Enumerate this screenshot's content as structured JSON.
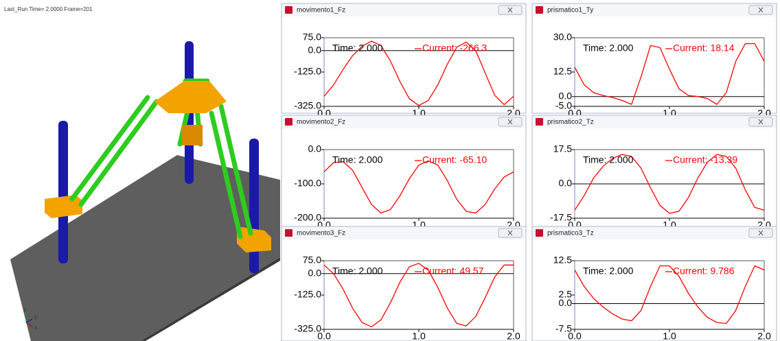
{
  "viewport": {
    "status": "Last_Run   Time= 2.0000  Frame=201",
    "triad": [
      "z",
      "y",
      "x"
    ]
  },
  "chart_data": [
    {
      "type": "line",
      "title": "movimento1_Fz",
      "annotations": {
        "time": "Time:  2.000",
        "current": "Current:  -266.3"
      },
      "xlim": [
        0,
        2
      ],
      "ylim": [
        -325,
        75
      ],
      "xticks": [
        {
          "value": 0,
          "label": "0.0"
        },
        {
          "value": 1,
          "label": "1.0"
        },
        {
          "value": 2,
          "label": "2.0"
        }
      ],
      "yticks": [
        {
          "value": 75,
          "label": "75.0"
        },
        {
          "value": 0,
          "label": "0.0"
        },
        {
          "value": -125,
          "label": "-125.0"
        },
        {
          "value": -325,
          "label": "-325.0"
        }
      ],
      "series": [
        {
          "color": "#ff0000",
          "x": [
            0,
            0.1,
            0.2,
            0.3,
            0.4,
            0.5,
            0.6,
            0.7,
            0.8,
            0.9,
            1.0,
            1.1,
            1.2,
            1.3,
            1.4,
            1.5,
            1.6,
            1.7,
            1.8,
            1.9,
            2.0
          ],
          "values": [
            -266,
            -200,
            -110,
            -30,
            25,
            55,
            30,
            -60,
            -180,
            -280,
            -320,
            -290,
            -200,
            -80,
            20,
            50,
            0,
            -130,
            -260,
            -315,
            -266
          ]
        }
      ]
    },
    {
      "type": "line",
      "title": "prismatico1_Ty",
      "annotations": {
        "time": "Time:  2.000",
        "current": "Current:  18.14"
      },
      "xlim": [
        0,
        2
      ],
      "ylim": [
        -5,
        30
      ],
      "xticks": [
        {
          "value": 0,
          "label": "0.0"
        },
        {
          "value": 1,
          "label": "1.0"
        },
        {
          "value": 2,
          "label": "2.0"
        }
      ],
      "yticks": [
        {
          "value": 30,
          "label": "30.0"
        },
        {
          "value": 12.5,
          "label": "12.5"
        },
        {
          "value": 0,
          "label": "0.0"
        },
        {
          "value": -5,
          "label": "-5.0"
        }
      ],
      "series": [
        {
          "color": "#ff0000",
          "x": [
            0,
            0.1,
            0.2,
            0.3,
            0.4,
            0.5,
            0.6,
            0.7,
            0.8,
            0.9,
            1.0,
            1.1,
            1.2,
            1.3,
            1.4,
            1.5,
            1.6,
            1.7,
            1.8,
            1.9,
            2.0
          ],
          "values": [
            15,
            6,
            2,
            0.5,
            -0.5,
            -2,
            -4,
            10,
            26,
            25,
            14,
            4,
            0.5,
            0,
            -1,
            -4,
            2,
            18,
            27,
            27,
            18
          ]
        }
      ]
    },
    {
      "type": "line",
      "title": "movimento2_Fz",
      "annotations": {
        "time": "Time:  2.000",
        "current": "Current:  -65.10"
      },
      "xlim": [
        0,
        2
      ],
      "ylim": [
        -200,
        0
      ],
      "xticks": [
        {
          "value": 0,
          "label": "0.0"
        },
        {
          "value": 1,
          "label": "1.0"
        },
        {
          "value": 2,
          "label": "2.0"
        }
      ],
      "yticks": [
        {
          "value": 0,
          "label": "0.0"
        },
        {
          "value": -100,
          "label": "-100.0"
        },
        {
          "value": -200,
          "label": "-200.0"
        }
      ],
      "series": [
        {
          "color": "#ff0000",
          "x": [
            0,
            0.1,
            0.2,
            0.3,
            0.4,
            0.5,
            0.6,
            0.7,
            0.8,
            0.9,
            1.0,
            1.1,
            1.2,
            1.3,
            1.4,
            1.5,
            1.6,
            1.7,
            1.8,
            1.9,
            2.0
          ],
          "values": [
            -65,
            -38,
            -35,
            -60,
            -110,
            -160,
            -185,
            -175,
            -135,
            -85,
            -45,
            -33,
            -45,
            -90,
            -145,
            -180,
            -185,
            -160,
            -115,
            -80,
            -65
          ]
        }
      ]
    },
    {
      "type": "line",
      "title": "prismatico2_Tz",
      "annotations": {
        "time": "Time:  2.000",
        "current": "Current:  -13.39"
      },
      "xlim": [
        0,
        2
      ],
      "ylim": [
        -17.5,
        17.5
      ],
      "xticks": [
        {
          "value": 0,
          "label": "0.0"
        },
        {
          "value": 1,
          "label": "1.0"
        },
        {
          "value": 2,
          "label": "2.0"
        }
      ],
      "yticks": [
        17.5,
        {
          "value": 0,
          "label": "0.0"
        },
        -17.5
      ],
      "series": [
        {
          "color": "#ff0000",
          "x": [
            0,
            0.1,
            0.2,
            0.3,
            0.4,
            0.5,
            0.6,
            0.7,
            0.8,
            0.9,
            1.0,
            1.1,
            1.2,
            1.3,
            1.4,
            1.5,
            1.6,
            1.7,
            1.8,
            1.9,
            2.0
          ],
          "values": [
            -13.4,
            -6,
            3,
            9,
            13,
            15,
            14,
            8,
            -2,
            -11,
            -15,
            -14,
            -7,
            3,
            11,
            15,
            14,
            8,
            -3,
            -12,
            -13.4
          ]
        }
      ]
    },
    {
      "type": "line",
      "title": "movimento3_Fz",
      "annotations": {
        "time": "Time:  2.000",
        "current": "Current:  49.57"
      },
      "xlim": [
        0,
        2
      ],
      "ylim": [
        -325,
        75
      ],
      "xticks": [
        {
          "value": 0,
          "label": "0.0"
        },
        {
          "value": 1,
          "label": "1.0"
        },
        {
          "value": 2,
          "label": "2.0"
        }
      ],
      "yticks": [
        {
          "value": 75,
          "label": "75.0"
        },
        {
          "value": 0,
          "label": "0.0"
        },
        {
          "value": -125,
          "label": "-125.0"
        },
        {
          "value": -325,
          "label": "-325.0"
        }
      ],
      "series": [
        {
          "color": "#ff0000",
          "x": [
            0,
            0.1,
            0.2,
            0.3,
            0.4,
            0.5,
            0.6,
            0.7,
            0.8,
            0.9,
            1.0,
            1.1,
            1.2,
            1.3,
            1.4,
            1.5,
            1.6,
            1.7,
            1.8,
            1.9,
            2.0
          ],
          "values": [
            50,
            0,
            -90,
            -200,
            -285,
            -310,
            -270,
            -170,
            -50,
            40,
            60,
            20,
            -80,
            -200,
            -290,
            -305,
            -250,
            -140,
            -20,
            50,
            50
          ]
        }
      ]
    },
    {
      "type": "line",
      "title": "prismatico3_Tz",
      "annotations": {
        "time": "Time:  2.000",
        "current": "Current:  9.786"
      },
      "xlim": [
        0,
        2
      ],
      "ylim": [
        -7.5,
        12.5
      ],
      "xticks": [
        {
          "value": 0,
          "label": "0.0"
        },
        {
          "value": 1,
          "label": "1.0"
        },
        {
          "value": 2,
          "label": "2.0"
        }
      ],
      "yticks": [
        12.5,
        2.5,
        {
          "value": 0,
          "label": "0.0"
        },
        -7.5
      ],
      "series": [
        {
          "color": "#ff0000",
          "x": [
            0,
            0.1,
            0.2,
            0.3,
            0.4,
            0.5,
            0.6,
            0.7,
            0.8,
            0.9,
            1.0,
            1.1,
            1.2,
            1.3,
            1.4,
            1.5,
            1.6,
            1.7,
            1.8,
            1.9,
            2.0
          ],
          "values": [
            9.8,
            5,
            1.5,
            -1,
            -3,
            -4.5,
            -5,
            -2,
            5,
            11,
            11,
            8,
            3,
            -1,
            -4,
            -5.5,
            -5.8,
            -2,
            5,
            11,
            9.8
          ]
        }
      ]
    }
  ]
}
